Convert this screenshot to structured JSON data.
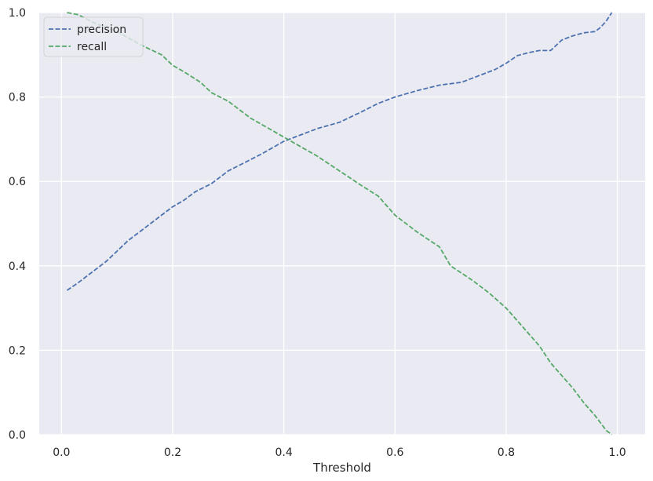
{
  "chart_data": {
    "type": "line",
    "xlabel": "Threshold",
    "ylabel": "",
    "xlim": [
      -0.04,
      1.05
    ],
    "ylim": [
      0.0,
      1.0
    ],
    "grid": true,
    "legend_position": "upper-left",
    "x_ticks": [
      "0.0",
      "0.2",
      "0.4",
      "0.6",
      "0.8",
      "1.0"
    ],
    "y_ticks": [
      "0.0",
      "0.2",
      "0.4",
      "0.6",
      "0.8",
      "1.0"
    ],
    "colors": {
      "background": "#eaeaf2",
      "grid": "#ffffff",
      "precision": "#4c72b0",
      "recall": "#55a868"
    },
    "series": [
      {
        "name": "precision",
        "line_style": "dashed",
        "x": [
          0.01,
          0.03,
          0.06,
          0.08,
          0.1,
          0.12,
          0.14,
          0.16,
          0.18,
          0.2,
          0.22,
          0.24,
          0.27,
          0.3,
          0.33,
          0.36,
          0.4,
          0.43,
          0.46,
          0.5,
          0.54,
          0.57,
          0.6,
          0.64,
          0.68,
          0.72,
          0.75,
          0.78,
          0.8,
          0.82,
          0.84,
          0.86,
          0.88,
          0.9,
          0.92,
          0.94,
          0.96,
          0.97,
          0.98,
          0.99
        ],
        "values": [
          0.342,
          0.36,
          0.39,
          0.41,
          0.435,
          0.46,
          0.48,
          0.5,
          0.52,
          0.54,
          0.555,
          0.575,
          0.595,
          0.625,
          0.645,
          0.665,
          0.695,
          0.71,
          0.725,
          0.74,
          0.765,
          0.785,
          0.8,
          0.815,
          0.828,
          0.835,
          0.85,
          0.865,
          0.88,
          0.898,
          0.905,
          0.91,
          0.91,
          0.935,
          0.945,
          0.952,
          0.955,
          0.965,
          0.98,
          1.0
        ]
      },
      {
        "name": "recall",
        "line_style": "dashed",
        "x": [
          0.01,
          0.03,
          0.06,
          0.1,
          0.14,
          0.18,
          0.2,
          0.22,
          0.25,
          0.27,
          0.3,
          0.34,
          0.38,
          0.42,
          0.46,
          0.5,
          0.54,
          0.57,
          0.6,
          0.64,
          0.68,
          0.7,
          0.74,
          0.77,
          0.8,
          0.82,
          0.84,
          0.86,
          0.88,
          0.9,
          0.92,
          0.94,
          0.96,
          0.98,
          0.99
        ],
        "values": [
          1.0,
          0.995,
          0.975,
          0.955,
          0.925,
          0.9,
          0.875,
          0.86,
          0.835,
          0.81,
          0.79,
          0.75,
          0.72,
          0.69,
          0.66,
          0.625,
          0.59,
          0.565,
          0.52,
          0.48,
          0.445,
          0.4,
          0.365,
          0.335,
          0.3,
          0.27,
          0.24,
          0.21,
          0.17,
          0.14,
          0.11,
          0.075,
          0.045,
          0.01,
          0.0
        ]
      }
    ]
  }
}
